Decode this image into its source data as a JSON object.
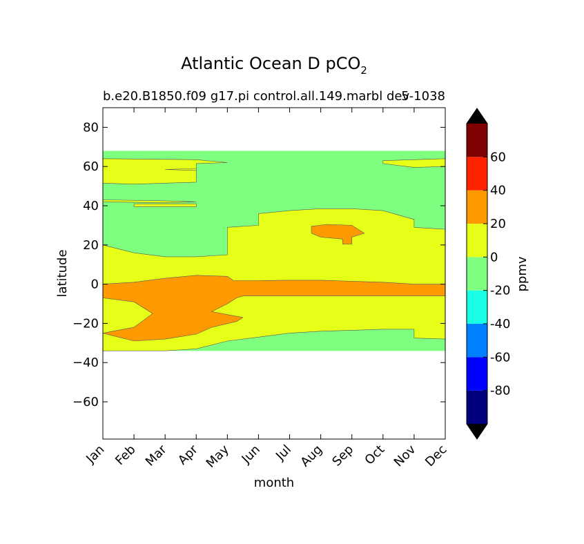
{
  "chart_data": {
    "type": "heatmap",
    "title": "Atlantic Ocean D pCO",
    "title_subscript": "2",
    "subtitle_left": "b.e20.B1850.f09 g17.pi control.all.149.marbl dev",
    "subtitle_right": "5-1038",
    "xlabel": "month",
    "ylabel": "latitude",
    "x_ticks": [
      "Jan",
      "Feb",
      "Mar",
      "Apr",
      "May",
      "Jun",
      "Jul",
      "Aug",
      "Sep",
      "Oct",
      "Nov",
      "Dec"
    ],
    "y_ticks": [
      {
        "value": 80,
        "label": "80"
      },
      {
        "value": 60,
        "label": "60"
      },
      {
        "value": 40,
        "label": "40"
      },
      {
        "value": 20,
        "label": "20"
      },
      {
        "value": 0,
        "label": "0"
      },
      {
        "value": -20,
        "label": "−20"
      },
      {
        "value": -40,
        "label": "−40"
      },
      {
        "value": -60,
        "label": "−60"
      }
    ],
    "ylim": [
      -79,
      90
    ],
    "data_lat_range": [
      -34,
      68
    ],
    "colorbar": {
      "label": "ppmv",
      "levels": [
        -100,
        -80,
        -60,
        -40,
        -20,
        0,
        20,
        40,
        60,
        80
      ],
      "tick_labels": [
        {
          "value": 60,
          "label": "60"
        },
        {
          "value": 40,
          "label": "40"
        },
        {
          "value": 20,
          "label": "20"
        },
        {
          "value": 0,
          "label": "0"
        },
        {
          "value": -20,
          "label": "-20"
        },
        {
          "value": -40,
          "label": "-40"
        },
        {
          "value": -60,
          "label": "-60"
        },
        {
          "value": -80,
          "label": "-80"
        }
      ],
      "colors": [
        "#00007f",
        "#0000ff",
        "#007fff",
        "#19ffe5",
        "#7fff7f",
        "#e5ff19",
        "#ff9900",
        "#ff2200",
        "#7f0000"
      ],
      "extend_min_color": "#000000",
      "extend_max_color": "#000000"
    },
    "regions": [
      {
        "name": "background",
        "bin": "-20 to 0",
        "color": "#7fff7f",
        "points": [
          [
            0,
            68
          ],
          [
            11,
            68
          ],
          [
            11,
            -34
          ],
          [
            0,
            -34
          ]
        ]
      },
      {
        "name": "high-lat-band",
        "bin": "0 to 20",
        "color": "#e5ff19",
        "points": [
          [
            0,
            64
          ],
          [
            3,
            63.5
          ],
          [
            4,
            62
          ],
          [
            3,
            61.5
          ],
          [
            3,
            58
          ],
          [
            2,
            58.5
          ],
          [
            3,
            59
          ],
          [
            3,
            52
          ],
          [
            2,
            51.5
          ],
          [
            1,
            51
          ],
          [
            0,
            51.5
          ]
        ]
      },
      {
        "name": "mid-lat-strip-1",
        "bin": "0 to 20",
        "color": "#e5ff19",
        "points": [
          [
            0,
            43
          ],
          [
            2,
            42.5
          ],
          [
            3,
            42
          ],
          [
            2,
            41.5
          ],
          [
            0,
            42
          ]
        ]
      },
      {
        "name": "mid-lat-strip-2",
        "bin": "0 to 20",
        "color": "#e5ff19",
        "points": [
          [
            1,
            41
          ],
          [
            3,
            41
          ],
          [
            3,
            39.5
          ],
          [
            1,
            39.5
          ]
        ]
      },
      {
        "name": "nov-dec-strip",
        "bin": "0 to 20",
        "color": "#e5ff19",
        "points": [
          [
            9,
            63
          ],
          [
            10,
            63.5
          ],
          [
            11,
            64
          ],
          [
            11,
            60
          ],
          [
            10,
            59.5
          ],
          [
            9,
            61.5
          ]
        ]
      },
      {
        "name": "tropical-band",
        "bin": "0 to 20",
        "color": "#e5ff19",
        "points": [
          [
            0,
            20
          ],
          [
            1,
            16
          ],
          [
            2,
            14
          ],
          [
            3,
            14
          ],
          [
            4,
            15
          ],
          [
            4,
            29
          ],
          [
            5,
            30
          ],
          [
            5,
            36
          ],
          [
            6,
            37.5
          ],
          [
            7,
            38.5
          ],
          [
            8,
            38.5
          ],
          [
            9,
            37.5
          ],
          [
            10,
            33
          ],
          [
            10,
            29
          ],
          [
            11,
            28
          ],
          [
            11,
            -28
          ],
          [
            10,
            -27.5
          ],
          [
            10,
            -23
          ],
          [
            9,
            -23
          ],
          [
            8,
            -23.5
          ],
          [
            7,
            -24
          ],
          [
            6,
            -25
          ],
          [
            5,
            -27
          ],
          [
            4,
            -29
          ],
          [
            3,
            -33
          ],
          [
            2,
            -34
          ],
          [
            0,
            -34
          ]
        ]
      },
      {
        "name": "equatorial-tongue",
        "bin": "20 to 40",
        "color": "#ff9900",
        "points": [
          [
            0,
            0
          ],
          [
            1,
            1
          ],
          [
            2,
            3
          ],
          [
            3,
            4.5
          ],
          [
            4,
            4
          ],
          [
            4.2,
            1.8
          ],
          [
            5,
            1.8
          ],
          [
            6,
            2
          ],
          [
            7,
            2
          ],
          [
            8,
            1.5
          ],
          [
            9,
            1
          ],
          [
            10,
            0
          ],
          [
            11,
            0
          ],
          [
            11,
            -6
          ],
          [
            10,
            -6
          ],
          [
            9,
            -6
          ],
          [
            8,
            -6
          ],
          [
            7,
            -6
          ],
          [
            6,
            -6
          ],
          [
            5,
            -6
          ],
          [
            4.5,
            -6
          ],
          [
            4.3,
            -7
          ],
          [
            4,
            -10
          ],
          [
            3.5,
            -14
          ],
          [
            4.5,
            -17
          ],
          [
            4.3,
            -19
          ],
          [
            3.5,
            -22
          ],
          [
            3,
            -25.5
          ],
          [
            2,
            -28
          ],
          [
            1,
            -29
          ],
          [
            0,
            -25
          ],
          [
            1,
            -22
          ],
          [
            1.6,
            -15
          ],
          [
            1,
            -9
          ],
          [
            0,
            -7
          ]
        ]
      },
      {
        "name": "subtropical-patch",
        "bin": "20 to 40",
        "color": "#ff9900",
        "points": [
          [
            6.7,
            29.5
          ],
          [
            7.2,
            30.5
          ],
          [
            8,
            30
          ],
          [
            8.4,
            26
          ],
          [
            8,
            24
          ],
          [
            8,
            20.5
          ],
          [
            7.7,
            20.5
          ],
          [
            7.7,
            23
          ],
          [
            7,
            24
          ],
          [
            6.7,
            26
          ]
        ]
      }
    ]
  }
}
